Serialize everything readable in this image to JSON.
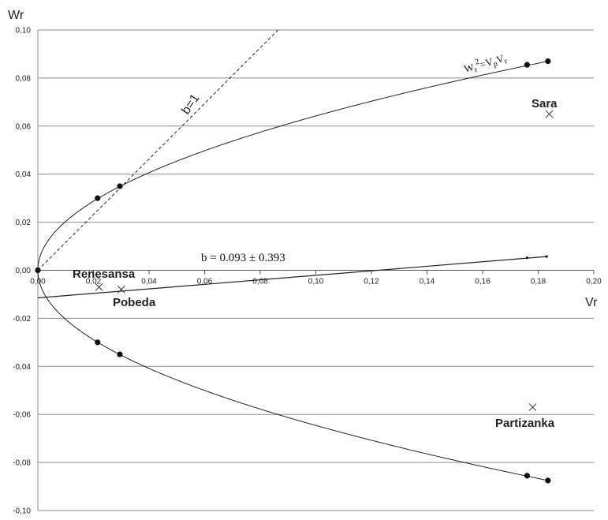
{
  "chart_data": {
    "type": "scatter",
    "ylabel": "Wr",
    "xlabel": "Vr",
    "xlim": [
      0,
      0.2
    ],
    "ylim": [
      -0.1,
      0.1
    ],
    "x_ticks": [
      "0,00",
      "0,02",
      "0,04",
      "0,06",
      "0,08",
      "0,10",
      "0,12",
      "0,14",
      "0,16",
      "0,18",
      "0,20"
    ],
    "y_ticks": [
      "0,10",
      "0,08",
      "0,06",
      "0,04",
      "0,02",
      "0,00",
      "-0,02",
      "-0,04",
      "-0,06",
      "-0,08",
      "-0,10"
    ],
    "grid": "horizontal",
    "annotations": {
      "b1_label": "b=1",
      "regression_label": "b = 0.093 ± 0.393",
      "parabola_label_main": "W",
      "parabola_label_sub1": "r",
      "parabola_label_sup": "2",
      "parabola_label_mid": "=V",
      "parabola_label_sub2": "p",
      "parabola_label_end": "V",
      "parabola_label_sub3": "r"
    },
    "series": [
      {
        "kind": "reference-line-b1",
        "x": [
          0,
          0.0864
        ],
        "y": [
          0,
          0.1
        ]
      },
      {
        "kind": "parabola-upper",
        "markers": [
          [
            0.0,
            0.0
          ],
          [
            0.0215,
            0.03
          ],
          [
            0.0295,
            0.035
          ],
          [
            0.176,
            0.0855
          ],
          [
            0.1835,
            0.087
          ]
        ]
      },
      {
        "kind": "parabola-lower",
        "markers": [
          [
            0.0,
            0.0
          ],
          [
            0.0215,
            -0.03
          ],
          [
            0.0295,
            -0.035
          ],
          [
            0.176,
            -0.0855
          ],
          [
            0.1835,
            -0.0875
          ]
        ]
      },
      {
        "kind": "regression-line",
        "x": [
          0.0,
          0.183
        ],
        "y": [
          -0.0115,
          0.0057
        ],
        "markers": [
          [
            0.176,
            0.0052
          ],
          [
            0.183,
            0.0057
          ]
        ]
      },
      {
        "kind": "data-points",
        "points": [
          {
            "name": "Renesansa",
            "x": 0.022,
            "y": -0.007
          },
          {
            "name": "Pobeda",
            "x": 0.03,
            "y": -0.008
          },
          {
            "name": "Sara",
            "x": 0.184,
            "y": 0.065
          },
          {
            "name": "Partizanka",
            "x": 0.178,
            "y": -0.057
          }
        ]
      }
    ]
  }
}
